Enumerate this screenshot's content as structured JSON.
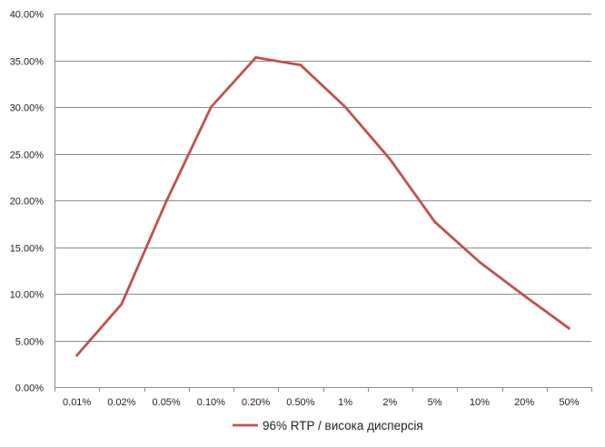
{
  "chart_data": {
    "type": "line",
    "categories": [
      "0.01%",
      "0.02%",
      "0.05%",
      "0.10%",
      "0.20%",
      "0.50%",
      "1%",
      "2%",
      "5%",
      "10%",
      "20%",
      "50%"
    ],
    "series": [
      {
        "name": "96% RTP / висока дисперсія",
        "values": [
          0.034,
          0.089,
          0.199,
          0.3,
          0.353,
          0.345,
          0.3,
          0.244,
          0.177,
          0.134,
          0.098,
          0.063
        ],
        "color": "#c0504d"
      }
    ],
    "yticks": [
      0,
      0.05,
      0.1,
      0.15,
      0.2,
      0.25,
      0.3,
      0.35,
      0.4
    ],
    "ytick_labels": [
      "0.00%",
      "5.00%",
      "10.00%",
      "15.00%",
      "20.00%",
      "25.00%",
      "30.00%",
      "35.00%",
      "40.00%"
    ],
    "ylim": [
      0,
      0.4
    ],
    "title": "",
    "xlabel": "",
    "ylabel": "",
    "grid": "horizontal",
    "legend_position": "bottom",
    "gridline_color": "#8c8c8c"
  }
}
